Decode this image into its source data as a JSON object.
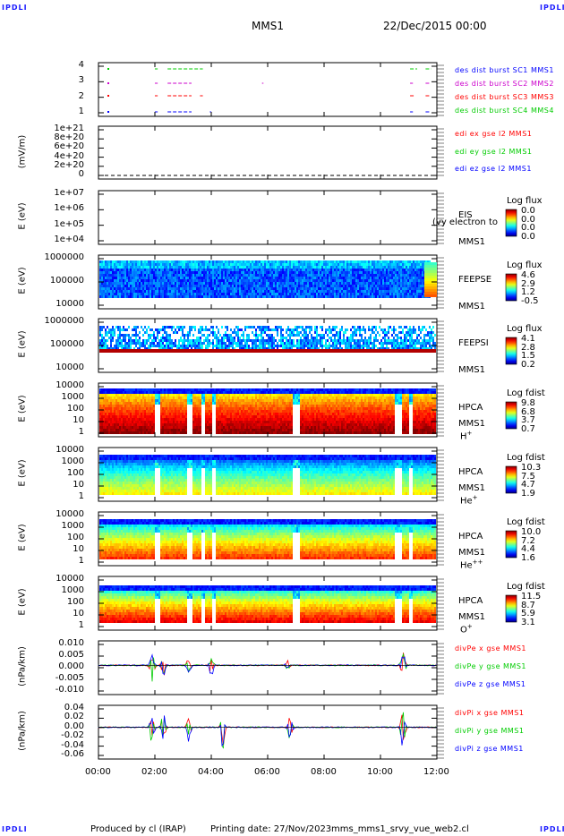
{
  "corner_label": "IPDLI",
  "header": {
    "center": "MMS1",
    "right": "22/Dec/2015 00:00"
  },
  "footer": {
    "left": "Produced by cl (IRAP)",
    "middle": "Printing date: 27/Nov/2023",
    "right": "mms_mms1_srvy_vue_web2.cl"
  },
  "x_axis": {
    "ticks": [
      "00:00",
      "02:00",
      "04:00",
      "06:00",
      "08:00",
      "10:00",
      "12:00"
    ],
    "range_hours": [
      0,
      12
    ]
  },
  "colors": {
    "sc1": "#0000ff",
    "sc2": "#cc00cc",
    "sc3": "#ff0000",
    "sc4": "#00cc00"
  },
  "panels": [
    {
      "id": "burst",
      "yticks": [
        "4",
        "3",
        "2",
        "1"
      ],
      "legend": [
        "des dist burst SC1 MMS1",
        "des dist burst SC2 MMS2",
        "des dist burst SC3 MMS3",
        "des dist burst SC4 MMS4"
      ]
    },
    {
      "id": "edi",
      "ylabel": "(mV/m)",
      "yticks": [
        "1e+21",
        "8e+20",
        "6e+20",
        "4e+20",
        "2e+20",
        "0"
      ],
      "legend": [
        "edi ex gse l2 MMS1",
        "edi ey gse l2 MMS1",
        "edi ez gse l2 MMS1"
      ]
    },
    {
      "id": "eis",
      "ylabel": "E (eV)",
      "yticks": [
        "1e+07",
        "1e+06",
        "1e+05",
        "1e+04"
      ],
      "side": [
        "EIS",
        "MMS1"
      ],
      "overlap_text": "(vy electron to",
      "cb_title": "Log flux",
      "cb_values": [
        "0.0",
        "0.0",
        "0.0",
        "0.0"
      ]
    },
    {
      "id": "feepse",
      "ylabel": "E (eV)",
      "yticks": [
        "1000000",
        "100000",
        "10000"
      ],
      "side": [
        "FEEPSE",
        "MMS1"
      ],
      "cb_title": "Log flux",
      "cb_values": [
        "4.6",
        "2.9",
        "1.2",
        "-0.5"
      ]
    },
    {
      "id": "feepsi",
      "ylabel": "E (eV)",
      "yticks": [
        "1000000",
        "100000",
        "10000"
      ],
      "side": [
        "FEEPSI",
        "MMS1"
      ],
      "cb_title": "Log flux",
      "cb_values": [
        "4.1",
        "2.8",
        "1.5",
        "0.2"
      ]
    },
    {
      "id": "hpca_h",
      "ylabel": "E (eV)",
      "yticks": [
        "10000",
        "1000",
        "100",
        "10",
        "1"
      ],
      "side": [
        "HPCA",
        "MMS1"
      ],
      "species": "H",
      "species_sup": "+",
      "cb_title": "Log fdist",
      "cb_values": [
        "9.8",
        "6.8",
        "3.7",
        "0.7"
      ]
    },
    {
      "id": "hpca_he",
      "ylabel": "E (eV)",
      "yticks": [
        "10000",
        "1000",
        "100",
        "10",
        "1"
      ],
      "side": [
        "HPCA",
        "MMS1"
      ],
      "species": "He",
      "species_sup": "+",
      "cb_title": "Log fdist",
      "cb_values": [
        "10.3",
        "7.5",
        "4.7",
        "1.9"
      ]
    },
    {
      "id": "hpca_hepp",
      "ylabel": "E (eV)",
      "yticks": [
        "10000",
        "1000",
        "100",
        "10",
        "1"
      ],
      "side": [
        "HPCA",
        "MMS1"
      ],
      "species": "He",
      "species_sup": "++",
      "cb_title": "Log fdist",
      "cb_values": [
        "10.0",
        "7.2",
        "4.4",
        "1.6"
      ]
    },
    {
      "id": "hpca_o",
      "ylabel": "E (eV)",
      "yticks": [
        "10000",
        "1000",
        "100",
        "10",
        "1"
      ],
      "side": [
        "HPCA",
        "MMS1"
      ],
      "species": "O",
      "species_sup": "+",
      "cb_title": "Log fdist",
      "cb_values": [
        "11.5",
        "8.7",
        "5.9",
        "3.1"
      ]
    },
    {
      "id": "divpe",
      "ylabel": "(nPa/km)",
      "yticks": [
        "0.010",
        "0.005",
        "0.000",
        "-0.005",
        "-0.010"
      ],
      "legend": [
        "divPe x gse MMS1",
        "divPe y gse MMS1",
        "divPe z gse MMS1"
      ]
    },
    {
      "id": "divpi",
      "ylabel": "(nPa/km)",
      "yticks": [
        "0.04",
        "0.02",
        "0.00",
        "-0.02",
        "-0.04",
        "-0.06"
      ],
      "legend": [
        "divPi x gse MMS1",
        "divPi y gse MMS1",
        "divPi z gse MMS1"
      ]
    }
  ],
  "chart_data": {
    "type": "line",
    "x_unit": "UT hours on 22/Dec/2015",
    "burst_intervals": {
      "SC1": [
        [
          2.0,
          2.1
        ],
        [
          2.45,
          3.3
        ],
        [
          3.95,
          4.0
        ],
        [
          11.05,
          11.15
        ],
        [
          11.6,
          11.75
        ]
      ],
      "SC2": [
        [
          2.0,
          2.1
        ],
        [
          2.45,
          3.3
        ],
        [
          5.8,
          5.85
        ],
        [
          11.05,
          11.15
        ],
        [
          11.6,
          11.75
        ]
      ],
      "SC3": [
        [
          2.0,
          2.1
        ],
        [
          2.45,
          3.3
        ],
        [
          3.6,
          3.7
        ],
        [
          11.05,
          11.2
        ],
        [
          11.6,
          11.75
        ]
      ],
      "SC4": [
        [
          2.0,
          2.1
        ],
        [
          2.45,
          3.7
        ],
        [
          11.05,
          11.3
        ],
        [
          11.6,
          11.8
        ]
      ]
    },
    "edi_mV_per_m": {
      "ylim": [
        0,
        1e+21
      ],
      "note_value": 0
    },
    "divPe_ylim": [
      -0.012,
      0.01
    ],
    "divPi_ylim": [
      -0.065,
      0.045
    ],
    "divPe_spikes": [
      [
        1.9,
        0.005,
        -0.007
      ],
      [
        2.3,
        0.004,
        -0.006
      ],
      [
        3.2,
        0.003,
        -0.004
      ],
      [
        4.0,
        0.003,
        -0.005
      ],
      [
        6.7,
        0.002,
        -0.002
      ],
      [
        10.8,
        0.006,
        -0.008
      ]
    ],
    "divPi_spikes": [
      [
        1.9,
        0.03,
        -0.04
      ],
      [
        2.3,
        0.03,
        -0.03
      ],
      [
        3.2,
        0.02,
        -0.03
      ],
      [
        4.4,
        0.02,
        -0.06
      ],
      [
        6.8,
        0.03,
        -0.03
      ],
      [
        10.8,
        0.04,
        -0.05
      ]
    ]
  }
}
